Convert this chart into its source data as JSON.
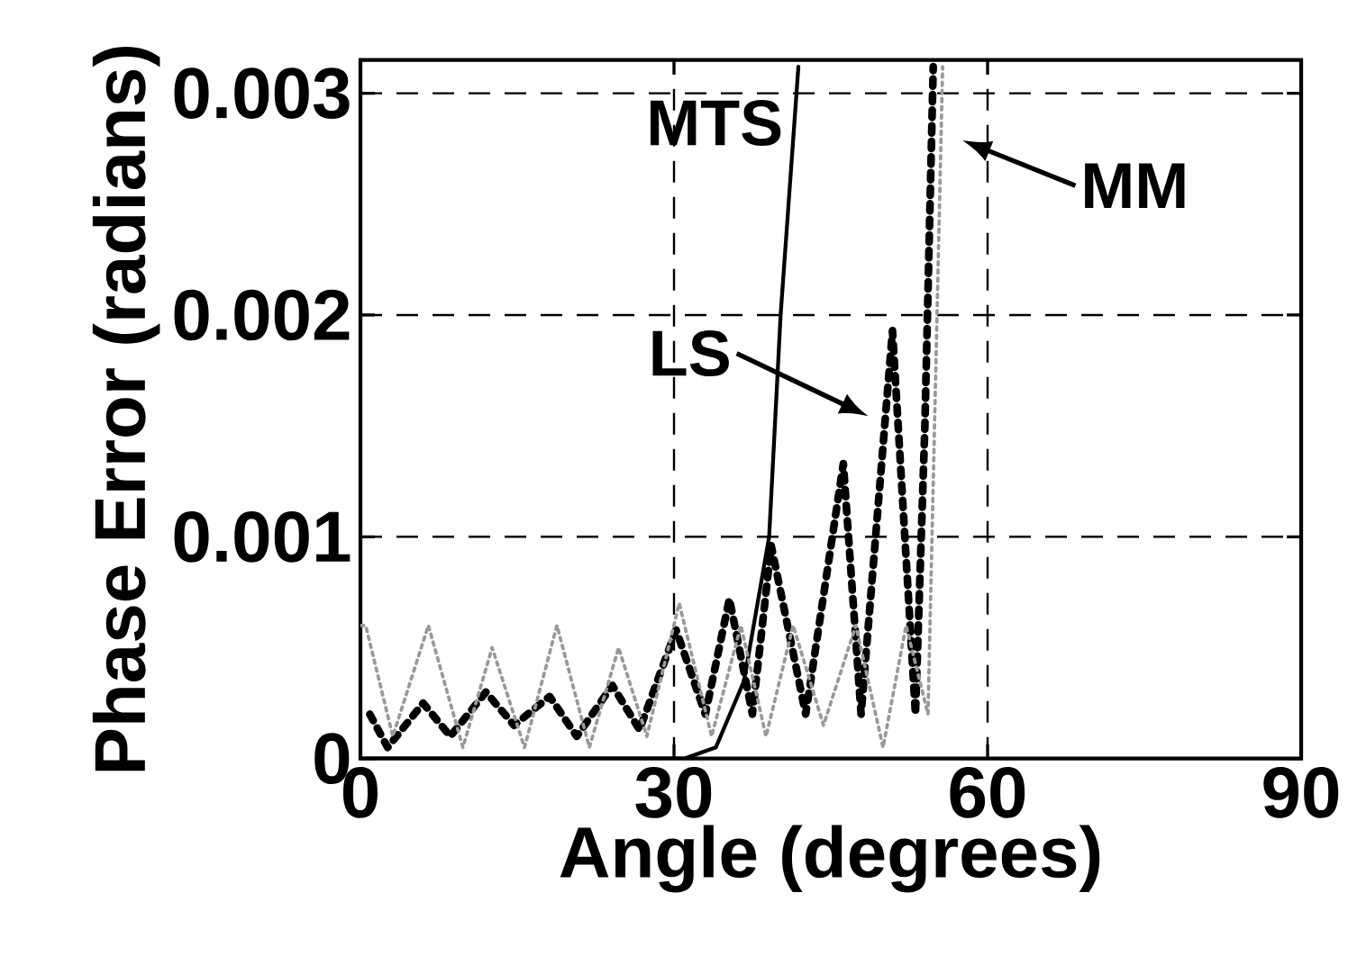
{
  "chart_data": {
    "type": "line",
    "xlabel": "Angle (degrees)",
    "ylabel": "Phase Error (radians)",
    "xlim": [
      0,
      90
    ],
    "ylim": [
      0,
      0.00315
    ],
    "xticks": [
      0,
      30,
      60,
      90
    ],
    "yticks": [
      0,
      0.001,
      0.002,
      0.003
    ],
    "grid": true,
    "series": [
      {
        "color": "#000000",
        "line_style": "solid",
        "x": [
          0,
          31,
          34,
          36.7,
          39.1,
          40.2,
          41.9
        ],
        "values": [
          0,
          0,
          5e-05,
          0.00035,
          0.001,
          0.002,
          0.00312
        ]
      },
      {
        "color": "#000000",
        "line_style": "dashed",
        "x": [
          0.9,
          2.6,
          6,
          8.6,
          12,
          14.7,
          18.1,
          20.7,
          24.1,
          26.7,
          30.2,
          33,
          35.3,
          37.5,
          39.3,
          42.6,
          46.2,
          47.9,
          50.9,
          53.1,
          54,
          54.8
        ],
        "values": [
          0.0002,
          5e-05,
          0.00025,
          0.0001,
          0.0003,
          0.00015,
          0.00028,
          0.0001,
          0.00033,
          0.00013,
          0.00058,
          0.0002,
          0.00072,
          0.0002,
          0.00096,
          0.0002,
          0.00133,
          0.0002,
          0.00193,
          0.0002,
          0.0015,
          0.00312
        ]
      },
      {
        "color": "#999999",
        "line_style": "dotted",
        "x": [
          0,
          0.5,
          3.1,
          6.5,
          9.8,
          12.6,
          15.7,
          18.8,
          21.9,
          24.7,
          27.4,
          30.5,
          33.6,
          36.4,
          38.8,
          41.4,
          44.3,
          47.4,
          50,
          52.2,
          54.3,
          55.7
        ],
        "values": [
          0.0006,
          0.0006,
          0.0001,
          0.0006,
          5e-05,
          0.0005,
          5e-05,
          0.0006,
          5e-05,
          0.0005,
          0.0001,
          0.0007,
          0.0001,
          0.0006,
          0.0001,
          0.0006,
          0.00015,
          0.0006,
          5e-05,
          0.0006,
          0.0002,
          0.00312
        ]
      }
    ],
    "annotations": [
      "MTS",
      "LS",
      "MM"
    ]
  }
}
